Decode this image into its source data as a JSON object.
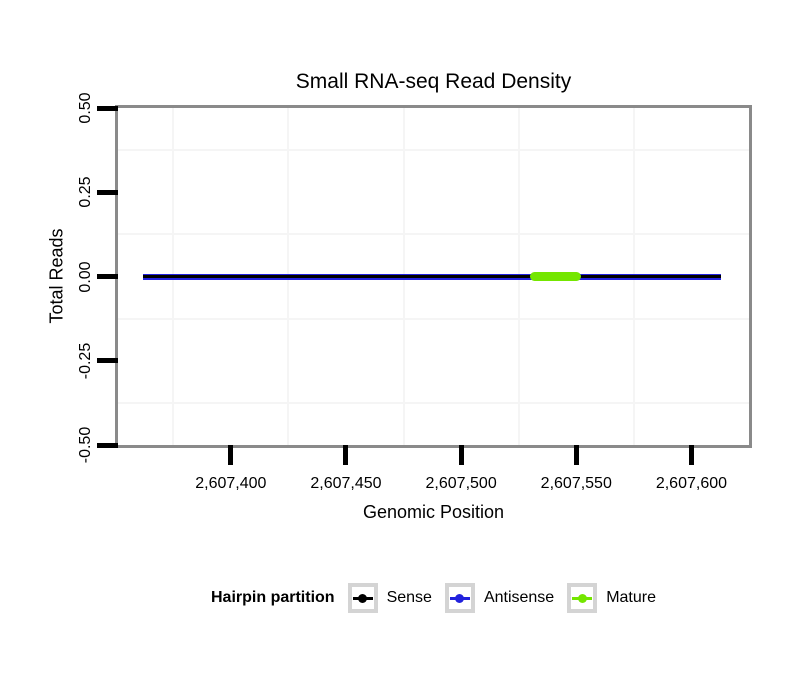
{
  "chart_data": {
    "type": "line",
    "title": "Small RNA-seq Read Density",
    "xlabel": "Genomic Position",
    "ylabel": "Total Reads",
    "xlim": [
      2607351,
      2607625
    ],
    "ylim": [
      -0.5,
      0.5
    ],
    "grid": "minor gridlines only, very light gray, no major gridlines visible",
    "x_axis": {
      "ticks": [
        {
          "value": 2607400,
          "label": "2,607,400"
        },
        {
          "value": 2607450,
          "label": "2,607,450"
        },
        {
          "value": 2607500,
          "label": "2,607,500"
        },
        {
          "value": 2607550,
          "label": "2,607,550"
        },
        {
          "value": 2607600,
          "label": "2,607,600"
        }
      ],
      "minor_gridlines": [
        2607375,
        2607425,
        2607475,
        2607525,
        2607575
      ]
    },
    "y_axis": {
      "ticks": [
        {
          "value": 0.5,
          "label": "0.50"
        },
        {
          "value": 0.25,
          "label": "0.25"
        },
        {
          "value": 0.0,
          "label": "0.00"
        },
        {
          "value": -0.25,
          "label": "-0.25"
        },
        {
          "value": -0.5,
          "label": "-0.50"
        }
      ],
      "minor_gridlines": [
        0.375,
        0.125,
        -0.125,
        -0.375
      ]
    },
    "series": [
      {
        "name": "Antisense",
        "role": "antisense",
        "color": "#2222DD",
        "x_start": 2607362,
        "x_end": 2607613,
        "y": 0
      },
      {
        "name": "Sense",
        "role": "sense",
        "color": "#000000",
        "x_start": 2607362,
        "x_end": 2607613,
        "y": 0
      },
      {
        "name": "Mature",
        "role": "mature",
        "color": "#74E600",
        "x_start": 2607530,
        "x_end": 2607552,
        "y": 0
      }
    ],
    "legend": {
      "title": "Hairpin partition",
      "position": "bottom",
      "entries": [
        {
          "label": "Sense",
          "color": "#000000"
        },
        {
          "label": "Antisense",
          "color": "#2222DD"
        },
        {
          "label": "Mature",
          "color": "#74E600"
        }
      ]
    },
    "colors": {
      "panel_border": "#8A8A8A",
      "gridline": "#F5F5F5",
      "tick": "#000000",
      "legend_key_border": "#D4D4D4",
      "background": "#FFFFFF"
    }
  }
}
